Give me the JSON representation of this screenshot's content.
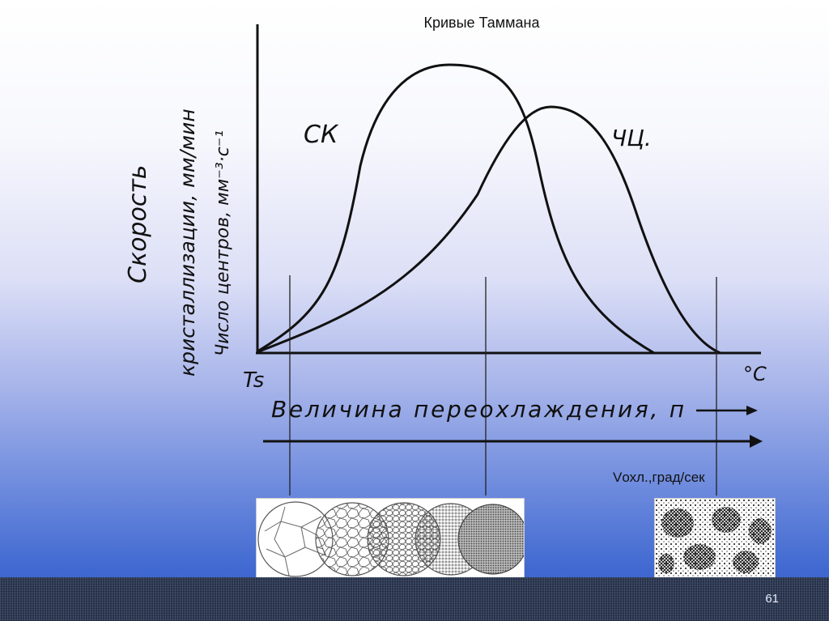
{
  "slide": {
    "title": "Кривые Таммана",
    "page_number": "61"
  },
  "diagram": {
    "y_label_1": "Скорость",
    "y_label_2": "кристаллизации, мм/мин",
    "y_label_3": "Число центров, мм⁻³·с⁻¹",
    "x_label": "Величина переохлаждения, п",
    "origin_label": "Ts",
    "unit_label": "°С",
    "curve_labels": {
      "sk": "СК",
      "chc": "ЧЦ."
    },
    "rate_label": "Vохл.,град/сек"
  },
  "colors": {
    "curve": "#111111",
    "bottom_strip": "#2e3a55"
  }
}
